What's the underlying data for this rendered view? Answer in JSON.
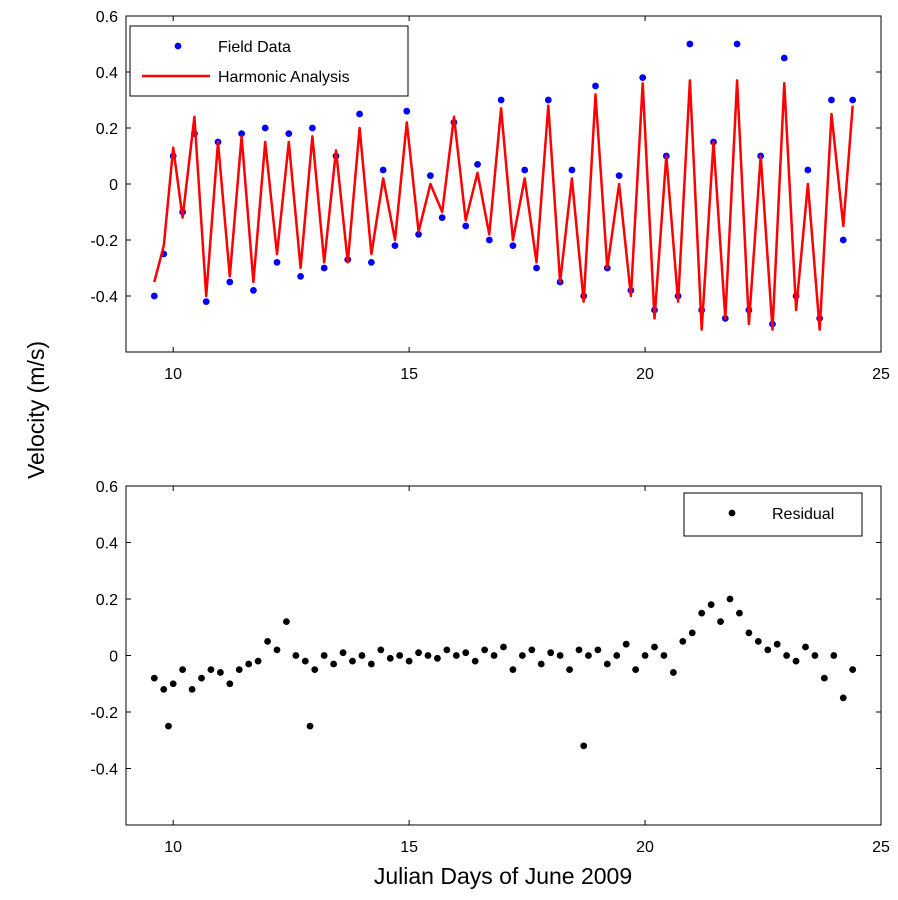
{
  "figure": {
    "ylabel": "Velocity (m/s)",
    "xlabel": "Julian Days of June 2009"
  },
  "chart_data": [
    {
      "type": "line",
      "title": "",
      "xlim": [
        9,
        25
      ],
      "ylim": [
        -0.6,
        0.6
      ],
      "xticks": [
        10,
        15,
        20,
        25
      ],
      "yticks": [
        -0.4,
        -0.2,
        0,
        0.2,
        0.4,
        0.6
      ],
      "xtick_labels": [
        "10",
        "15",
        "20",
        "25"
      ],
      "ytick_labels": [
        "-0.4",
        "-0.2",
        "0",
        "0.2",
        "0.4",
        "0.6"
      ],
      "grid": false,
      "legend": "top-left",
      "series": [
        {
          "name": "Field Data",
          "marker": "dot",
          "color": "#0000ff",
          "x": [
            9.6,
            9.8,
            10.0,
            10.2,
            10.45,
            10.7,
            10.95,
            11.2,
            11.45,
            11.7,
            11.95,
            12.2,
            12.45,
            12.7,
            12.95,
            13.2,
            13.45,
            13.7,
            13.95,
            14.2,
            14.45,
            14.7,
            14.95,
            15.2,
            15.45,
            15.7,
            15.95,
            16.2,
            16.45,
            16.7,
            16.95,
            17.2,
            17.45,
            17.7,
            17.95,
            18.2,
            18.45,
            18.7,
            18.95,
            19.2,
            19.45,
            19.7,
            19.95,
            20.2,
            20.45,
            20.7,
            20.95,
            21.2,
            21.45,
            21.7,
            21.95,
            22.2,
            22.45,
            22.7,
            22.95,
            23.2,
            23.45,
            23.7,
            23.95,
            24.2,
            24.4
          ],
          "y": [
            -0.4,
            -0.25,
            0.1,
            -0.1,
            0.18,
            -0.42,
            0.15,
            -0.35,
            0.18,
            -0.38,
            0.2,
            -0.28,
            0.18,
            -0.33,
            0.2,
            -0.3,
            0.1,
            -0.27,
            0.25,
            -0.28,
            0.05,
            -0.22,
            0.26,
            -0.18,
            0.03,
            -0.12,
            0.22,
            -0.15,
            0.07,
            -0.2,
            0.3,
            -0.22,
            0.05,
            -0.3,
            0.3,
            -0.35,
            0.05,
            -0.4,
            0.35,
            -0.3,
            0.03,
            -0.38,
            0.38,
            -0.45,
            0.1,
            -0.4,
            0.5,
            -0.45,
            0.15,
            -0.48,
            0.5,
            -0.45,
            0.1,
            -0.5,
            0.45,
            -0.4,
            0.05,
            -0.48,
            0.3,
            -0.2,
            0.3
          ]
        },
        {
          "name": "Harmonic Analysis",
          "marker": "line",
          "color": "#ff0000",
          "x": [
            9.6,
            9.8,
            10.0,
            10.2,
            10.45,
            10.7,
            10.95,
            11.2,
            11.45,
            11.7,
            11.95,
            12.2,
            12.45,
            12.7,
            12.95,
            13.2,
            13.45,
            13.7,
            13.95,
            14.2,
            14.45,
            14.7,
            14.95,
            15.2,
            15.45,
            15.7,
            15.95,
            16.2,
            16.45,
            16.7,
            16.95,
            17.2,
            17.45,
            17.7,
            17.95,
            18.2,
            18.45,
            18.7,
            18.95,
            19.2,
            19.45,
            19.7,
            19.95,
            20.2,
            20.45,
            20.7,
            20.95,
            21.2,
            21.45,
            21.7,
            21.95,
            22.2,
            22.45,
            22.7,
            22.95,
            23.2,
            23.45,
            23.7,
            23.95,
            24.2,
            24.4
          ],
          "y": [
            -0.35,
            -0.22,
            0.13,
            -0.12,
            0.24,
            -0.4,
            0.15,
            -0.33,
            0.17,
            -0.35,
            0.15,
            -0.25,
            0.15,
            -0.3,
            0.17,
            -0.28,
            0.12,
            -0.28,
            0.2,
            -0.25,
            0.02,
            -0.2,
            0.22,
            -0.17,
            0.0,
            -0.1,
            0.24,
            -0.13,
            0.04,
            -0.18,
            0.27,
            -0.2,
            0.02,
            -0.28,
            0.28,
            -0.35,
            0.02,
            -0.42,
            0.32,
            -0.3,
            0.0,
            -0.4,
            0.36,
            -0.48,
            0.1,
            -0.42,
            0.37,
            -0.52,
            0.15,
            -0.48,
            0.37,
            -0.5,
            0.1,
            -0.52,
            0.36,
            -0.45,
            0.0,
            -0.52,
            0.25,
            -0.15,
            0.28
          ]
        }
      ]
    },
    {
      "type": "scatter",
      "title": "",
      "xlim": [
        9,
        25
      ],
      "ylim": [
        -0.6,
        0.6
      ],
      "xticks": [
        10,
        15,
        20,
        25
      ],
      "yticks": [
        -0.4,
        -0.2,
        0,
        0.2,
        0.4,
        0.6
      ],
      "xtick_labels": [
        "10",
        "15",
        "20",
        "25"
      ],
      "ytick_labels": [
        "-0.4",
        "-0.2",
        "0",
        "0.2",
        "0.4",
        "0.6"
      ],
      "grid": false,
      "legend": "top-right",
      "series": [
        {
          "name": "Residual",
          "marker": "dot",
          "color": "#000000",
          "x": [
            9.6,
            9.8,
            9.9,
            10.0,
            10.2,
            10.4,
            10.6,
            10.8,
            11.0,
            11.2,
            11.4,
            11.6,
            11.8,
            12.0,
            12.2,
            12.4,
            12.6,
            12.8,
            12.9,
            13.0,
            13.2,
            13.4,
            13.6,
            13.8,
            14.0,
            14.2,
            14.4,
            14.6,
            14.8,
            15.0,
            15.2,
            15.4,
            15.6,
            15.8,
            16.0,
            16.2,
            16.4,
            16.6,
            16.8,
            17.0,
            17.2,
            17.4,
            17.6,
            17.8,
            18.0,
            18.2,
            18.4,
            18.6,
            18.7,
            18.8,
            19.0,
            19.2,
            19.4,
            19.6,
            19.8,
            20.0,
            20.2,
            20.4,
            20.6,
            20.8,
            21.0,
            21.2,
            21.4,
            21.6,
            21.8,
            22.0,
            22.2,
            22.4,
            22.6,
            22.8,
            23.0,
            23.2,
            23.4,
            23.6,
            23.8,
            24.0,
            24.2,
            24.4
          ],
          "y": [
            -0.08,
            -0.12,
            -0.25,
            -0.1,
            -0.05,
            -0.12,
            -0.08,
            -0.05,
            -0.06,
            -0.1,
            -0.05,
            -0.03,
            -0.02,
            0.05,
            0.02,
            0.12,
            0.0,
            -0.02,
            -0.25,
            -0.05,
            0.0,
            -0.03,
            0.01,
            -0.02,
            0.0,
            -0.03,
            0.02,
            -0.01,
            0.0,
            -0.02,
            0.01,
            0.0,
            -0.01,
            0.02,
            0.0,
            0.01,
            -0.02,
            0.02,
            0.0,
            0.03,
            -0.05,
            0.0,
            0.02,
            -0.03,
            0.01,
            0.0,
            -0.05,
            0.02,
            -0.32,
            0.0,
            0.02,
            -0.03,
            0.0,
            0.04,
            -0.05,
            0.0,
            0.03,
            0.0,
            -0.06,
            0.05,
            0.08,
            0.15,
            0.18,
            0.12,
            0.2,
            0.15,
            0.08,
            0.05,
            0.02,
            0.04,
            0.0,
            -0.02,
            0.03,
            0.0,
            -0.08,
            0.0,
            -0.15,
            -0.05
          ]
        }
      ]
    }
  ]
}
